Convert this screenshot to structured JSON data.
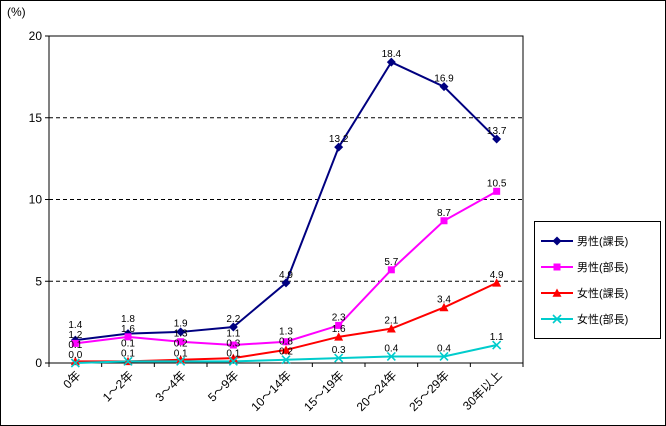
{
  "chart_data": {
    "type": "line",
    "title": "",
    "unit_label": "(%)",
    "categories": [
      "0年",
      "1～2年",
      "3～4年",
      "5～9年",
      "10～14年",
      "15～19年",
      "20～24年",
      "25～29年",
      "30年以上"
    ],
    "series": [
      {
        "name": "男性(課長)",
        "marker": "diamond",
        "color": "#000080",
        "values": [
          1.4,
          1.8,
          1.9,
          2.2,
          4.9,
          13.2,
          18.4,
          16.9,
          13.7
        ]
      },
      {
        "name": "男性(部長)",
        "marker": "square",
        "color": "#FF00FF",
        "values": [
          1.2,
          1.6,
          1.3,
          1.1,
          1.3,
          2.3,
          5.7,
          8.7,
          10.5
        ]
      },
      {
        "name": "女性(課長)",
        "marker": "triangle",
        "color": "#FF0000",
        "values": [
          0.1,
          0.1,
          0.2,
          0.3,
          0.8,
          1.6,
          2.1,
          3.4,
          4.9
        ]
      },
      {
        "name": "女性(部長)",
        "marker": "x",
        "color": "#00CCCC",
        "values": [
          0.0,
          0.1,
          0.1,
          0.1,
          0.2,
          0.3,
          0.4,
          0.4,
          1.1
        ]
      }
    ],
    "ylim": [
      0,
      20
    ],
    "yticks": [
      0,
      5,
      10,
      15,
      20
    ],
    "grid": "horizontal-dashed",
    "legend_position": "right",
    "data_labels": true
  }
}
